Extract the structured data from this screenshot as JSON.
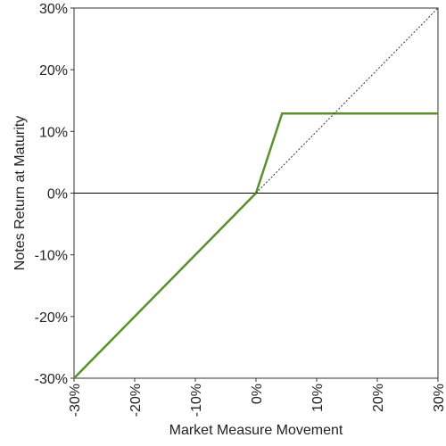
{
  "chart_data": {
    "type": "line",
    "xlabel": "Market Measure Movement",
    "ylabel": "Notes Return at Maturity",
    "xlim": [
      -30,
      30
    ],
    "ylim": [
      -30,
      30
    ],
    "x_ticks": [
      "-30%",
      "-20%",
      "-10%",
      "0%",
      "10%",
      "20%",
      "30%"
    ],
    "y_ticks": [
      "30%",
      "20%",
      "10%",
      "0%",
      "-10%",
      "-20%",
      "-30%"
    ],
    "x_tick_values": [
      -30,
      -20,
      -10,
      0,
      10,
      20,
      30
    ],
    "y_tick_values": [
      30,
      20,
      10,
      0,
      -10,
      -20,
      -30
    ],
    "grid": false,
    "legend": "none",
    "series": [
      {
        "style": "solid",
        "color": "#5a8f2e",
        "points": [
          [
            -30,
            -30
          ],
          [
            0,
            0
          ],
          [
            4.3,
            12.9
          ],
          [
            30,
            12.9
          ]
        ]
      },
      {
        "style": "dotted",
        "color": "#333333",
        "points": [
          [
            0,
            0
          ],
          [
            30,
            30
          ]
        ]
      }
    ],
    "reference_lines": [
      {
        "axis": "y",
        "value": 0,
        "color": "#000000"
      }
    ]
  }
}
